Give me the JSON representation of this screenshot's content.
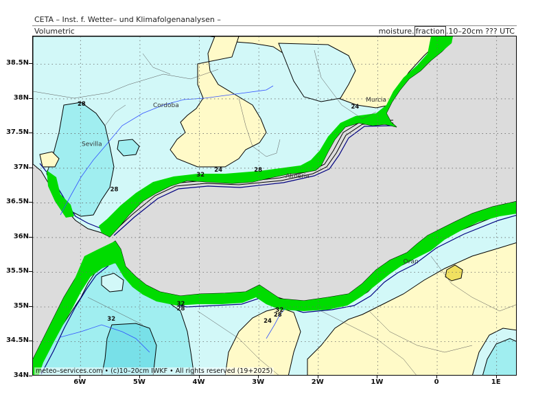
{
  "header": {
    "institute": "CETA – Inst. f. Wetter– und Klimafolgenanalysen –",
    "product": "Volumetric",
    "variable": "moisture.",
    "unit_box": "fraction",
    "layer_time": ".10–20cm  ??? UTC"
  },
  "axes": {
    "lat_labels": [
      "38.5N",
      "38N",
      "37.5N",
      "37N",
      "36.5N",
      "36N",
      "35.5N",
      "35N",
      "34.5N",
      "34N"
    ],
    "lat_values": [
      38.5,
      38.0,
      37.5,
      37.0,
      36.5,
      36.0,
      35.5,
      35.0,
      34.5,
      34.0
    ],
    "lon_labels": [
      "6W",
      "5W",
      "4W",
      "3W",
      "2W",
      "1W",
      "0",
      "1E"
    ],
    "lon_values": [
      -6,
      -5,
      -4,
      -3,
      -2,
      -1,
      0,
      1
    ],
    "lon_range": [
      -6.8,
      1.35
    ],
    "lat_range": [
      34.0,
      38.9
    ]
  },
  "cities": [
    {
      "name": "Cordoba",
      "lon": -4.78,
      "lat": 37.88
    },
    {
      "name": "Sevilla",
      "lon": -5.98,
      "lat": 37.32
    },
    {
      "name": "Murcia",
      "lon": -1.2,
      "lat": 37.96
    },
    {
      "name": "Almeria",
      "lon": -2.55,
      "lat": 36.86
    },
    {
      "name": "Oran",
      "lon": -0.57,
      "lat": 35.63
    }
  ],
  "contour_labels": [
    {
      "text": "28",
      "lon": -6.05,
      "lat": 37.9
    },
    {
      "text": "24",
      "lon": -1.45,
      "lat": 37.86
    },
    {
      "text": "32",
      "lon": -4.05,
      "lat": 36.88
    },
    {
      "text": "24",
      "lon": -3.75,
      "lat": 36.95
    },
    {
      "text": "28",
      "lon": -3.08,
      "lat": 36.95
    },
    {
      "text": "28",
      "lon": -5.5,
      "lat": 36.67
    },
    {
      "text": "32",
      "lon": -4.38,
      "lat": 35.02
    },
    {
      "text": "28",
      "lon": -4.38,
      "lat": 34.95
    },
    {
      "text": "32",
      "lon": -5.55,
      "lat": 34.8
    },
    {
      "text": "24",
      "lon": -2.92,
      "lat": 34.77
    },
    {
      "text": "28",
      "lon": -2.75,
      "lat": 34.86
    },
    {
      "text": "32",
      "lon": -2.72,
      "lat": 34.93
    }
  ],
  "colors": {
    "sea": "#dcdcdc",
    "band_20_24": "#fffac8",
    "band_24_28": "#d2f8f8",
    "band_28_32": "#a0eef0",
    "band_32_36": "#78e0e8",
    "band_40_44": "#f0e060",
    "coast_mask": "#00dc00",
    "deep_contours": "#000080"
  },
  "footer": "meteo–services.com  •  (c)10–20cm IWKF  •  All rights reserved (19+2025)"
}
